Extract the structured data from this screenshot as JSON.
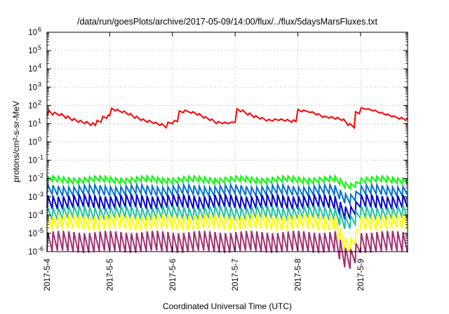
{
  "chart_data": {
    "type": "line",
    "title": "/data/run/goesPlots/archive/2017-05-09/14:00/flux/../flux/5daysMarsFluxes.txt",
    "xlabel": "Coordinated Universal Time (UTC)",
    "ylabel": "protons/cm²-s-sr-MeV",
    "y_scale": "log",
    "ylim": [
      1e-06,
      1000000.0
    ],
    "xlim_days": [
      0,
      5.75
    ],
    "grid": true,
    "legend": "none",
    "x_ticks": [
      {
        "value": 0,
        "label": "2017-5-4"
      },
      {
        "value": 1,
        "label": "2017-5-5"
      },
      {
        "value": 2,
        "label": "2017-5-6"
      },
      {
        "value": 3,
        "label": "2017-5-7"
      },
      {
        "value": 4,
        "label": "2017-5-8"
      },
      {
        "value": 5,
        "label": "2017-5-9"
      }
    ],
    "y_ticks": [
      {
        "exp": -6,
        "label": "10",
        "sup": "-6"
      },
      {
        "exp": -5,
        "label": "10",
        "sup": "-5"
      },
      {
        "exp": -4,
        "label": "10",
        "sup": "-4"
      },
      {
        "exp": -3,
        "label": "10",
        "sup": "-3"
      },
      {
        "exp": -2,
        "label": "10",
        "sup": "-2"
      },
      {
        "exp": -1,
        "label": "10",
        "sup": "-1"
      },
      {
        "exp": 0,
        "label": "10",
        "sup": "0"
      },
      {
        "exp": 1,
        "label": "10",
        "sup": "1"
      },
      {
        "exp": 2,
        "label": "10",
        "sup": "2"
      },
      {
        "exp": 3,
        "label": "10",
        "sup": "3"
      },
      {
        "exp": 4,
        "label": "10",
        "sup": "4"
      },
      {
        "exp": 5,
        "label": "10",
        "sup": "5"
      },
      {
        "exp": 6,
        "label": "10",
        "sup": "6"
      }
    ],
    "series": [
      {
        "color": "#ff0000",
        "points": [
          [
            0.0,
            25
          ],
          [
            0.03,
            55
          ],
          [
            0.09,
            30
          ],
          [
            0.12,
            42
          ],
          [
            0.2,
            28
          ],
          [
            0.23,
            35
          ],
          [
            0.3,
            20
          ],
          [
            0.33,
            26
          ],
          [
            0.4,
            15
          ],
          [
            0.43,
            19
          ],
          [
            0.5,
            12
          ],
          [
            0.53,
            15
          ],
          [
            0.6,
            10
          ],
          [
            0.63,
            13
          ],
          [
            0.7,
            8
          ],
          [
            0.73,
            11
          ],
          [
            0.77,
            8
          ],
          [
            0.8,
            15
          ],
          [
            0.86,
            12
          ],
          [
            0.89,
            25
          ],
          [
            0.95,
            20
          ],
          [
            0.98,
            30
          ],
          [
            1.0,
            28
          ],
          [
            1.03,
            70
          ],
          [
            1.09,
            50
          ],
          [
            1.12,
            60
          ],
          [
            1.2,
            40
          ],
          [
            1.23,
            48
          ],
          [
            1.3,
            30
          ],
          [
            1.33,
            36
          ],
          [
            1.4,
            20
          ],
          [
            1.43,
            25
          ],
          [
            1.5,
            15
          ],
          [
            1.53,
            18
          ],
          [
            1.6,
            12
          ],
          [
            1.63,
            15
          ],
          [
            1.7,
            10
          ],
          [
            1.73,
            12
          ],
          [
            1.8,
            8
          ],
          [
            1.83,
            10
          ],
          [
            1.9,
            6
          ],
          [
            1.93,
            12
          ],
          [
            2.0,
            10
          ],
          [
            2.03,
            15
          ],
          [
            2.08,
            13
          ],
          [
            2.11,
            50
          ],
          [
            2.17,
            40
          ],
          [
            2.2,
            55
          ],
          [
            2.3,
            38
          ],
          [
            2.33,
            45
          ],
          [
            2.4,
            30
          ],
          [
            2.43,
            35
          ],
          [
            2.5,
            20
          ],
          [
            2.53,
            24
          ],
          [
            2.6,
            15
          ],
          [
            2.63,
            18
          ],
          [
            2.7,
            10
          ],
          [
            2.73,
            13
          ],
          [
            2.8,
            10
          ],
          [
            2.83,
            12
          ],
          [
            2.9,
            10
          ],
          [
            2.93,
            12
          ],
          [
            3.0,
            12
          ],
          [
            3.03,
            65
          ],
          [
            3.09,
            45
          ],
          [
            3.12,
            55
          ],
          [
            3.2,
            30
          ],
          [
            3.23,
            38
          ],
          [
            3.3,
            22
          ],
          [
            3.33,
            27
          ],
          [
            3.4,
            18
          ],
          [
            3.43,
            22
          ],
          [
            3.5,
            14
          ],
          [
            3.53,
            17
          ],
          [
            3.6,
            14
          ],
          [
            3.63,
            18
          ],
          [
            3.7,
            15
          ],
          [
            3.73,
            18
          ],
          [
            3.8,
            14
          ],
          [
            3.83,
            17
          ],
          [
            3.9,
            12
          ],
          [
            3.93,
            16
          ],
          [
            3.97,
            13
          ],
          [
            4.0,
            60
          ],
          [
            4.06,
            45
          ],
          [
            4.09,
            55
          ],
          [
            4.2,
            40
          ],
          [
            4.23,
            45
          ],
          [
            4.3,
            30
          ],
          [
            4.33,
            35
          ],
          [
            4.4,
            22
          ],
          [
            4.43,
            26
          ],
          [
            4.5,
            20
          ],
          [
            4.53,
            24
          ],
          [
            4.6,
            18
          ],
          [
            4.63,
            22
          ],
          [
            4.7,
            15
          ],
          [
            4.73,
            18
          ],
          [
            4.8,
            8
          ],
          [
            4.83,
            10
          ],
          [
            4.9,
            6
          ],
          [
            4.92,
            45
          ],
          [
            4.98,
            35
          ],
          [
            5.01,
            75
          ],
          [
            5.09,
            60
          ],
          [
            5.12,
            65
          ],
          [
            5.2,
            50
          ],
          [
            5.23,
            55
          ],
          [
            5.3,
            38
          ],
          [
            5.33,
            42
          ],
          [
            5.4,
            30
          ],
          [
            5.43,
            34
          ],
          [
            5.5,
            24
          ],
          [
            5.53,
            27
          ],
          [
            5.62,
            18
          ],
          [
            5.65,
            22
          ],
          [
            5.72,
            15
          ],
          [
            5.75,
            20
          ]
        ]
      },
      {
        "color": "#00ff00",
        "base": 0.012,
        "dip": 0.006,
        "ratio": 2.0
      },
      {
        "color": "#0070d0",
        "base": 0.004,
        "dip": 0.0015,
        "ratio": 3.2
      },
      {
        "color": "#0000cc",
        "base": 0.0012,
        "dip": 0.0003,
        "ratio": 5.0
      },
      {
        "color": "#20c0a0",
        "base": 0.0003,
        "dip": 8e-05,
        "ratio": 5.0
      },
      {
        "color": "#ffff00",
        "base": 0.0001,
        "dip": 4e-06,
        "ratio": 6.0
      },
      {
        "color": "#a03070",
        "base": 1.2e-05,
        "dip": 1.2e-06,
        "ratio": 12.0
      }
    ]
  }
}
